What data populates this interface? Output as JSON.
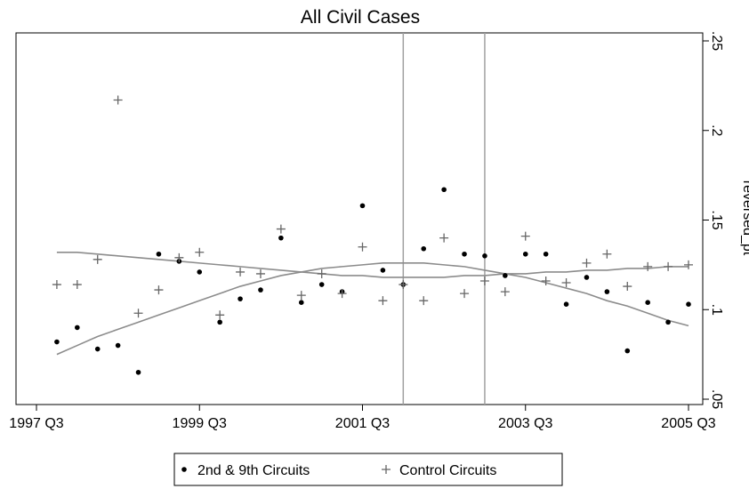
{
  "chart_data": {
    "type": "scatter",
    "title": "All Civil Cases",
    "y_label": "reversed_pt",
    "x": [
      "1997 Q4",
      "1998 Q1",
      "1998 Q2",
      "1998 Q3",
      "1998 Q4",
      "1999 Q1",
      "1999 Q2",
      "1999 Q3",
      "1999 Q4",
      "2000 Q1",
      "2000 Q2",
      "2000 Q3",
      "2000 Q4",
      "2001 Q1",
      "2001 Q2",
      "2001 Q3",
      "2001 Q4",
      "2002 Q1",
      "2002 Q2",
      "2002 Q3",
      "2002 Q4",
      "2003 Q1",
      "2003 Q2",
      "2003 Q3",
      "2003 Q4",
      "2004 Q1",
      "2004 Q2",
      "2004 Q3",
      "2004 Q4",
      "2005 Q1",
      "2005 Q2",
      "2005 Q3"
    ],
    "series": [
      {
        "name": "2nd & 9th Circuits",
        "marker": "dot",
        "color": "#000000",
        "fit_color": "#8c8c8c",
        "values": [
          0.082,
          0.09,
          0.078,
          0.08,
          0.065,
          0.131,
          0.127,
          0.121,
          0.093,
          0.106,
          0.111,
          0.14,
          0.104,
          0.114,
          0.11,
          0.158,
          0.122,
          0.114,
          0.134,
          0.167,
          0.131,
          0.13,
          0.119,
          0.131,
          0.131,
          0.103,
          0.118,
          0.11,
          0.077,
          0.104,
          0.093,
          0.103
        ],
        "fit": [
          0.075,
          0.08,
          0.085,
          0.089,
          0.093,
          0.097,
          0.101,
          0.105,
          0.109,
          0.113,
          0.116,
          0.119,
          0.121,
          0.123,
          0.124,
          0.125,
          0.126,
          0.126,
          0.126,
          0.125,
          0.124,
          0.122,
          0.12,
          0.118,
          0.115,
          0.112,
          0.109,
          0.105,
          0.102,
          0.098,
          0.094,
          0.091
        ]
      },
      {
        "name": "Control Circuits",
        "marker": "plus",
        "color": "#666666",
        "fit_color": "#8c8c8c",
        "values": [
          0.114,
          0.114,
          0.128,
          0.217,
          0.098,
          0.111,
          0.129,
          0.132,
          0.097,
          0.121,
          0.12,
          0.145,
          0.108,
          0.12,
          0.109,
          0.135,
          0.105,
          0.114,
          0.105,
          0.14,
          0.109,
          0.116,
          0.11,
          0.141,
          0.116,
          0.115,
          0.126,
          0.131,
          0.113,
          0.124,
          0.124,
          0.125
        ],
        "fit": [
          0.132,
          0.132,
          0.131,
          0.13,
          0.129,
          0.128,
          0.127,
          0.126,
          0.125,
          0.124,
          0.123,
          0.122,
          0.121,
          0.12,
          0.119,
          0.119,
          0.118,
          0.118,
          0.118,
          0.118,
          0.119,
          0.119,
          0.12,
          0.12,
          0.121,
          0.121,
          0.122,
          0.122,
          0.123,
          0.123,
          0.124,
          0.124
        ]
      }
    ],
    "xlim": [
      "1997 Q3",
      "2005 Q3"
    ],
    "xticks": [
      "1997 Q3",
      "1999 Q3",
      "2001 Q3",
      "2003 Q3",
      "2005 Q3"
    ],
    "xlines": [
      "2002 Q1",
      "2003 Q1"
    ],
    "ylim": [
      0.05,
      0.25
    ],
    "yticks": [
      {
        "value": 0.05,
        "label": ".05"
      },
      {
        "value": 0.1,
        "label": ".1"
      },
      {
        "value": 0.15,
        "label": ".15"
      },
      {
        "value": 0.2,
        "label": ".2"
      },
      {
        "value": 0.25,
        "label": ".25"
      }
    ],
    "y_axis_side": "right"
  }
}
